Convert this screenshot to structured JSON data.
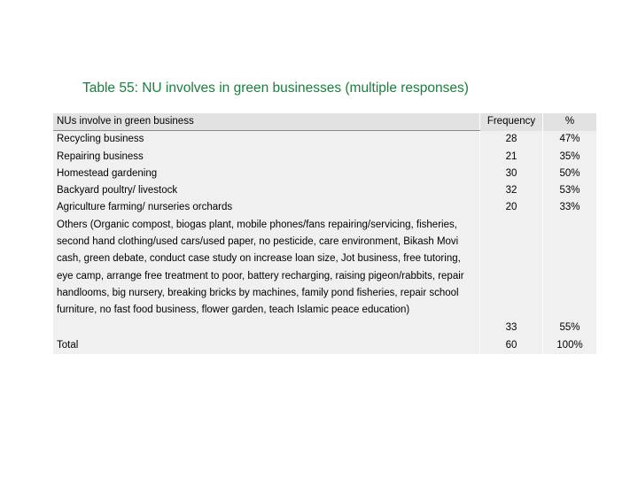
{
  "title": "Table 55: NU involves in green businesses (multiple responses)",
  "table": {
    "headers": {
      "desc": "NUs involve in green business",
      "freq": "Frequency",
      "pct": "%"
    },
    "rows": [
      {
        "desc": "Recycling business",
        "freq": "28",
        "pct": "47%"
      },
      {
        "desc": "Repairing business",
        "freq": "21",
        "pct": "35%"
      },
      {
        "desc": "Homestead gardening",
        "freq": "30",
        "pct": "50%"
      },
      {
        "desc": "Backyard poultry/ livestock",
        "freq": "32",
        "pct": "53%"
      },
      {
        "desc": "Agriculture farming/ nurseries orchards",
        "freq": "20",
        "pct": "33%"
      }
    ],
    "others": {
      "desc": "Others (Organic compost, biogas plant, mobile phones/fans repairing/servicing, fisheries, second hand clothing/used cars/used paper, no pesticide, care environment, Bikash Movi cash, green debate, conduct case study on increase loan size, Jot business, free tutoring, eye camp, arrange free treatment to poor, battery recharging, raising pigeon/rabbits, repair handlooms,  big nursery, breaking bricks by machines, family pond fisheries, repair school furniture,  no fast food business, flower garden, teach Islamic peace education)",
      "freq": "33",
      "pct": "55%"
    },
    "total": {
      "desc": "Total",
      "freq": "60",
      "pct": "100%"
    }
  }
}
